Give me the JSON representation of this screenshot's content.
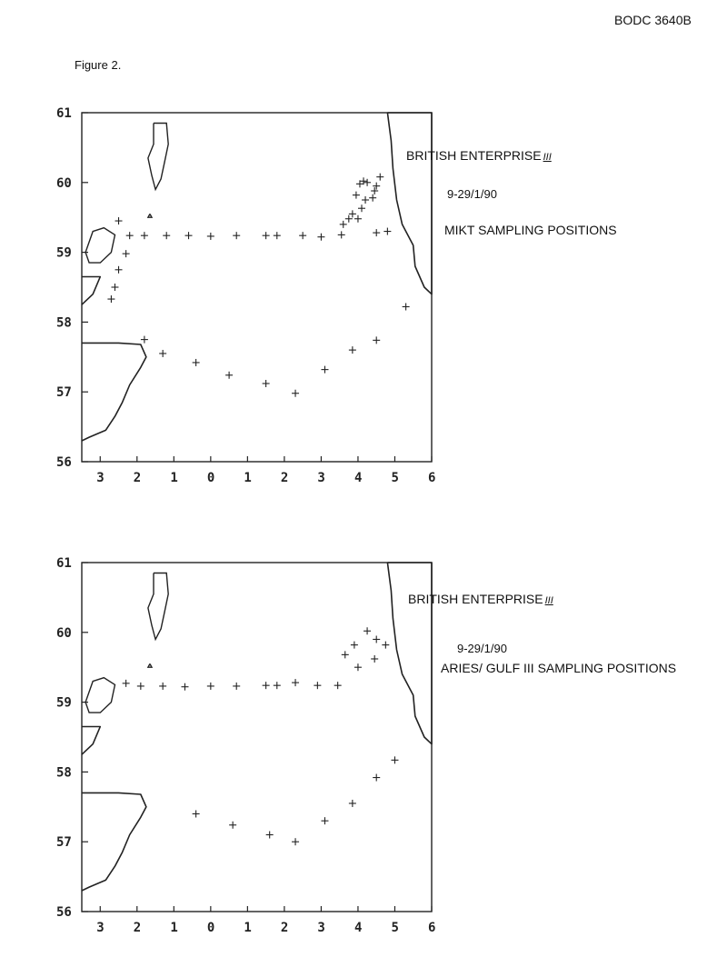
{
  "header": {
    "doc_id": "BODC 3640B",
    "figure_label": "Figure 2."
  },
  "maps": [
    {
      "name": "mikt",
      "title": "BRITISH ENTERPRISE",
      "title_suffix": "III",
      "dates": "9-29/1/90",
      "caption": "MIKT SAMPLING POSITIONS",
      "y_ticks": [
        "61",
        "60",
        "59",
        "58",
        "57",
        "56"
      ],
      "x_ticks": [
        "3",
        "2",
        "1",
        "0",
        "1",
        "2",
        "3",
        "4",
        "5",
        "6"
      ],
      "points": [
        [
          -2.5,
          59.45
        ],
        [
          -2.2,
          59.24
        ],
        [
          -1.8,
          59.24
        ],
        [
          -1.2,
          59.24
        ],
        [
          -0.6,
          59.24
        ],
        [
          0.0,
          59.23
        ],
        [
          0.7,
          59.24
        ],
        [
          1.5,
          59.24
        ],
        [
          1.8,
          59.24
        ],
        [
          2.5,
          59.24
        ],
        [
          3.0,
          59.22
        ],
        [
          3.55,
          59.25
        ],
        [
          -2.3,
          58.98
        ],
        [
          -2.5,
          58.75
        ],
        [
          -2.6,
          58.5
        ],
        [
          -2.7,
          58.33
        ],
        [
          3.6,
          59.4
        ],
        [
          3.75,
          59.48
        ],
        [
          3.85,
          59.55
        ],
        [
          4.0,
          59.48
        ],
        [
          4.1,
          59.63
        ],
        [
          4.2,
          59.75
        ],
        [
          3.95,
          59.82
        ],
        [
          4.4,
          59.78
        ],
        [
          4.5,
          59.95
        ],
        [
          4.05,
          59.98
        ],
        [
          4.25,
          60.0
        ],
        [
          4.6,
          60.08
        ],
        [
          4.15,
          60.02
        ],
        [
          4.45,
          59.88
        ],
        [
          4.8,
          59.3
        ],
        [
          4.5,
          59.28
        ],
        [
          -1.8,
          57.75
        ],
        [
          -1.3,
          57.55
        ],
        [
          -0.4,
          57.42
        ],
        [
          0.5,
          57.24
        ],
        [
          1.5,
          57.12
        ],
        [
          2.3,
          56.98
        ],
        [
          3.1,
          57.32
        ],
        [
          3.85,
          57.6
        ],
        [
          4.5,
          57.74
        ],
        [
          5.3,
          58.22
        ]
      ]
    },
    {
      "name": "aries",
      "title": "BRITISH ENTERPRISE",
      "title_suffix": "III",
      "dates": "9-29/1/90",
      "caption": "ARIES/ GULF III SAMPLING POSITIONS",
      "y_ticks": [
        "61",
        "60",
        "59",
        "58",
        "57",
        "56"
      ],
      "x_ticks": [
        "3",
        "2",
        "1",
        "0",
        "1",
        "2",
        "3",
        "4",
        "5",
        "6"
      ],
      "points": [
        [
          -2.3,
          59.27
        ],
        [
          -1.9,
          59.23
        ],
        [
          -1.3,
          59.23
        ],
        [
          -0.7,
          59.22
        ],
        [
          0.0,
          59.23
        ],
        [
          0.7,
          59.23
        ],
        [
          1.5,
          59.24
        ],
        [
          1.8,
          59.24
        ],
        [
          2.3,
          59.28
        ],
        [
          2.9,
          59.24
        ],
        [
          3.45,
          59.24
        ],
        [
          3.65,
          59.68
        ],
        [
          4.0,
          59.5
        ],
        [
          3.9,
          59.82
        ],
        [
          4.25,
          60.02
        ],
        [
          4.5,
          59.9
        ],
        [
          4.75,
          59.82
        ],
        [
          4.45,
          59.62
        ],
        [
          -0.4,
          57.4
        ],
        [
          0.6,
          57.24
        ],
        [
          1.6,
          57.1
        ],
        [
          2.3,
          57.0
        ],
        [
          3.1,
          57.3
        ],
        [
          3.85,
          57.55
        ],
        [
          4.5,
          57.92
        ],
        [
          5.0,
          58.17
        ]
      ]
    }
  ]
}
